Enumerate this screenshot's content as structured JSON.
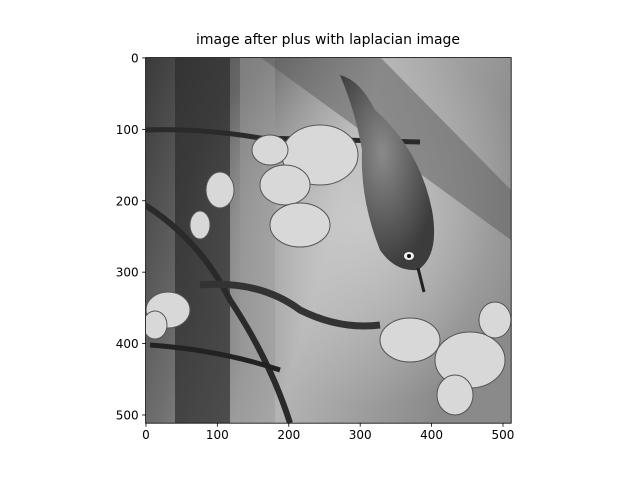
{
  "chart_data": {
    "type": "image",
    "title": "image after plus with laplacian image",
    "xlim": [
      -0.5,
      511.5
    ],
    "ylim": [
      511.5,
      -0.5
    ],
    "xticks": [
      0,
      100,
      200,
      300,
      400,
      500
    ],
    "yticks": [
      0,
      100,
      200,
      300,
      400,
      500
    ],
    "colormap": "gray"
  }
}
